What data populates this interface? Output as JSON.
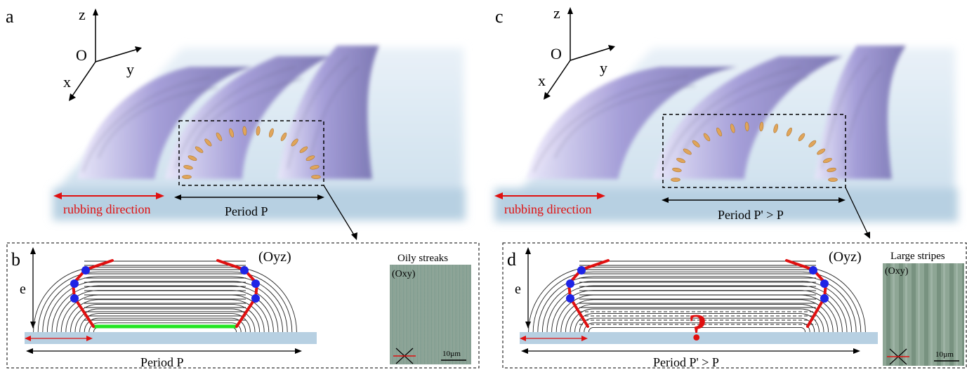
{
  "panel_a": {
    "letter": "a",
    "axis_z": "z",
    "axis_origin": "O",
    "axis_y": "y",
    "axis_x": "x",
    "rubbing_label": "rubbing direction",
    "period_label": "Period P"
  },
  "panel_b": {
    "letter": "b",
    "plane_label": "(Oyz)",
    "thickness_label": "e",
    "period_label": "Period P",
    "micro_title": "Oily streaks",
    "micro_plane": "(Oxy)",
    "scale_label": "10µm"
  },
  "panel_c": {
    "letter": "c",
    "axis_z": "z",
    "axis_origin": "O",
    "axis_y": "y",
    "axis_x": "x",
    "rubbing_label": "rubbing direction",
    "period_label": "Period P' > P"
  },
  "panel_d": {
    "letter": "d",
    "plane_label": "(Oyz)",
    "thickness_label": "e",
    "period_label": "Period P' > P",
    "question_mark": "?",
    "micro_title": "Large stripes",
    "micro_plane": "(Oxy)",
    "scale_label": "10µm"
  },
  "colors": {
    "substrate": "#b7d0e2",
    "layer_line": "#222222",
    "wall_red": "#e01010",
    "defect_blue": "#1e24e6",
    "anchoring_green": "#22e622",
    "rubbing_red": "#e01010",
    "molecule_orange": "#e0a55a",
    "ridge_purple": "#8a7fc8",
    "micro_bg": "#8fa89a"
  }
}
